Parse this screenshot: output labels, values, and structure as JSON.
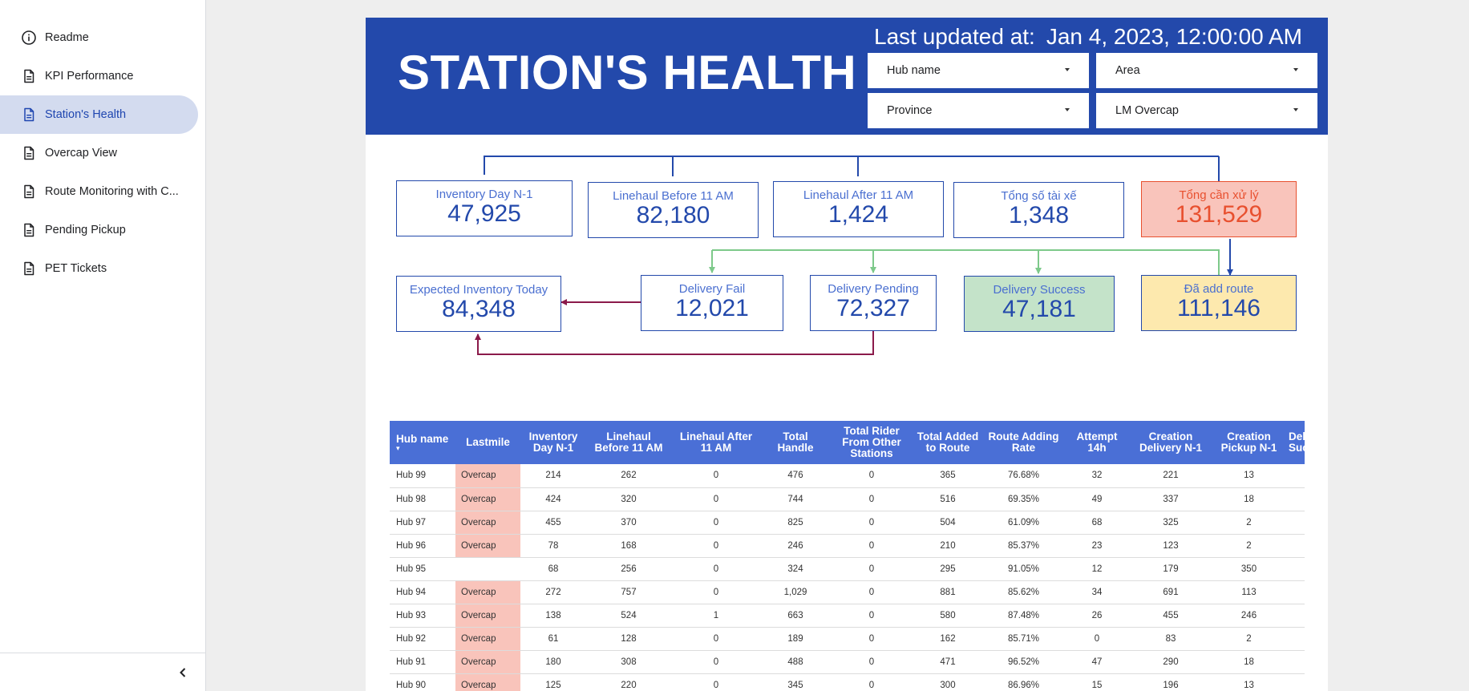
{
  "sidebar": {
    "items": [
      {
        "label": "Readme",
        "icon": "info-icon",
        "active": false
      },
      {
        "label": "KPI Performance",
        "icon": "document-icon",
        "active": false
      },
      {
        "label": "Station's Health",
        "icon": "document-icon",
        "active": true
      },
      {
        "label": "Overcap View",
        "icon": "document-icon",
        "active": false
      },
      {
        "label": "Route Monitoring with C...",
        "icon": "document-icon",
        "active": false
      },
      {
        "label": "Pending Pickup",
        "icon": "document-icon",
        "active": false
      },
      {
        "label": "PET Tickets",
        "icon": "document-icon",
        "active": false
      }
    ],
    "collapse_icon": "chevron-left-icon"
  },
  "banner": {
    "title": "STATION'S HEALTH",
    "updated_label": "Last updated at:",
    "updated_value": "Jan 4, 2023, 12:00:00 AM",
    "background": "#2349ab"
  },
  "filters": {
    "hub_name": "Hub name",
    "area": "Area",
    "province": "Province",
    "lm_overcap": "LM Overcap"
  },
  "kpis": {
    "inventory_n1": {
      "label": "Inventory Day N-1",
      "value": "47,925"
    },
    "linehaul_before": {
      "label": "Linehaul Before 11 AM",
      "value": "82,180"
    },
    "linehaul_after": {
      "label": "Linehaul After 11 AM",
      "value": "1,424"
    },
    "total_drivers": {
      "label": "Tổng số tài xế",
      "value": "1,348"
    },
    "total_to_process": {
      "label": "Tổng cần xử lý",
      "value": "131,529"
    },
    "expected_inventory": {
      "label": "Expected Inventory Today",
      "value": "84,348"
    },
    "delivery_fail": {
      "label": "Delivery Fail",
      "value": "12,021"
    },
    "delivery_pending": {
      "label": "Delivery Pending",
      "value": "72,327"
    },
    "delivery_success": {
      "label": "Delivery Success",
      "value": "47,181"
    },
    "added_route": {
      "label": "Đã add route",
      "value": "111,146"
    }
  },
  "colors": {
    "accent": "#2349ab",
    "header_row": "#4a6fd6",
    "overcap": "#f9c4bb",
    "red": "#e8502f",
    "green": "#c4e3c9",
    "yellow": "#fde9ae",
    "flow_green": "#7dc98a",
    "flow_maroon": "#8b1a4a"
  },
  "table": {
    "sort_indicator": "▾",
    "headers": [
      "Hub name",
      "Lastmile",
      "Inventory Day N-1",
      "Linehaul Before 11 AM",
      "Linehaul After 11 AM",
      "Total Handle",
      "Total Rider From Other Stations",
      "Total Added to Route",
      "Route Adding Rate",
      "Attempt 14h",
      "Creation Delivery N-1",
      "Creation Pickup N-1",
      "Delivery Success"
    ],
    "rows": [
      {
        "hub": "Hub 99",
        "lastmile": "Overcap",
        "cells": [
          "214",
          "262",
          "0",
          "476",
          "0",
          "365",
          "76.68%",
          "32",
          "221",
          "13",
          ""
        ]
      },
      {
        "hub": "Hub 98",
        "lastmile": "Overcap",
        "cells": [
          "424",
          "320",
          "0",
          "744",
          "0",
          "516",
          "69.35%",
          "49",
          "337",
          "18",
          ""
        ]
      },
      {
        "hub": "Hub 97",
        "lastmile": "Overcap",
        "cells": [
          "455",
          "370",
          "0",
          "825",
          "0",
          "504",
          "61.09%",
          "68",
          "325",
          "2",
          ""
        ]
      },
      {
        "hub": "Hub 96",
        "lastmile": "Overcap",
        "cells": [
          "78",
          "168",
          "0",
          "246",
          "0",
          "210",
          "85.37%",
          "23",
          "123",
          "2",
          ""
        ]
      },
      {
        "hub": "Hub 95",
        "lastmile": "",
        "cells": [
          "68",
          "256",
          "0",
          "324",
          "0",
          "295",
          "91.05%",
          "12",
          "179",
          "350",
          ""
        ]
      },
      {
        "hub": "Hub 94",
        "lastmile": "Overcap",
        "cells": [
          "272",
          "757",
          "0",
          "1,029",
          "0",
          "881",
          "85.62%",
          "34",
          "691",
          "113",
          ""
        ]
      },
      {
        "hub": "Hub 93",
        "lastmile": "Overcap",
        "cells": [
          "138",
          "524",
          "1",
          "663",
          "0",
          "580",
          "87.48%",
          "26",
          "455",
          "246",
          ""
        ]
      },
      {
        "hub": "Hub 92",
        "lastmile": "Overcap",
        "cells": [
          "61",
          "128",
          "0",
          "189",
          "0",
          "162",
          "85.71%",
          "0",
          "83",
          "2",
          ""
        ]
      },
      {
        "hub": "Hub 91",
        "lastmile": "Overcap",
        "cells": [
          "180",
          "308",
          "0",
          "488",
          "0",
          "471",
          "96.52%",
          "47",
          "290",
          "18",
          ""
        ]
      },
      {
        "hub": "Hub 90",
        "lastmile": "Overcap",
        "cells": [
          "125",
          "220",
          "0",
          "345",
          "0",
          "300",
          "86.96%",
          "15",
          "196",
          "13",
          ""
        ]
      }
    ]
  }
}
